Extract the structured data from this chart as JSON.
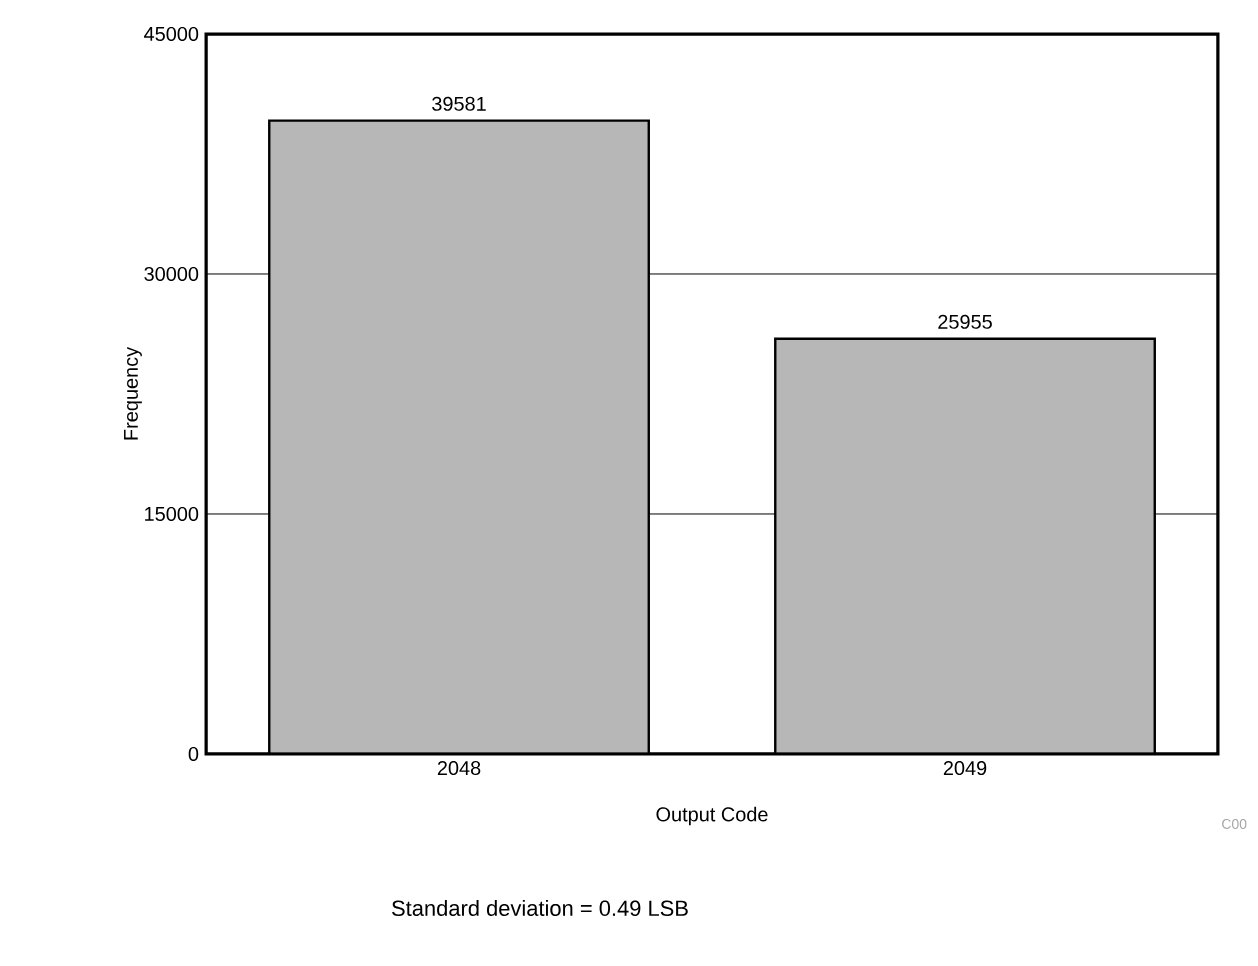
{
  "chart_data": {
    "type": "bar",
    "categories": [
      "2048",
      "2049"
    ],
    "values": [
      39581,
      25955
    ],
    "color": "#b7b7b7",
    "xlabel": "Output Code",
    "ylabel": "Frequency",
    "ylim": [
      0,
      45000
    ],
    "yticks": [
      0,
      15000,
      30000,
      45000
    ],
    "grid": "y",
    "data_labels": true,
    "annotations": [
      "Standard deviation = 0.49 LSB",
      "C00"
    ]
  }
}
